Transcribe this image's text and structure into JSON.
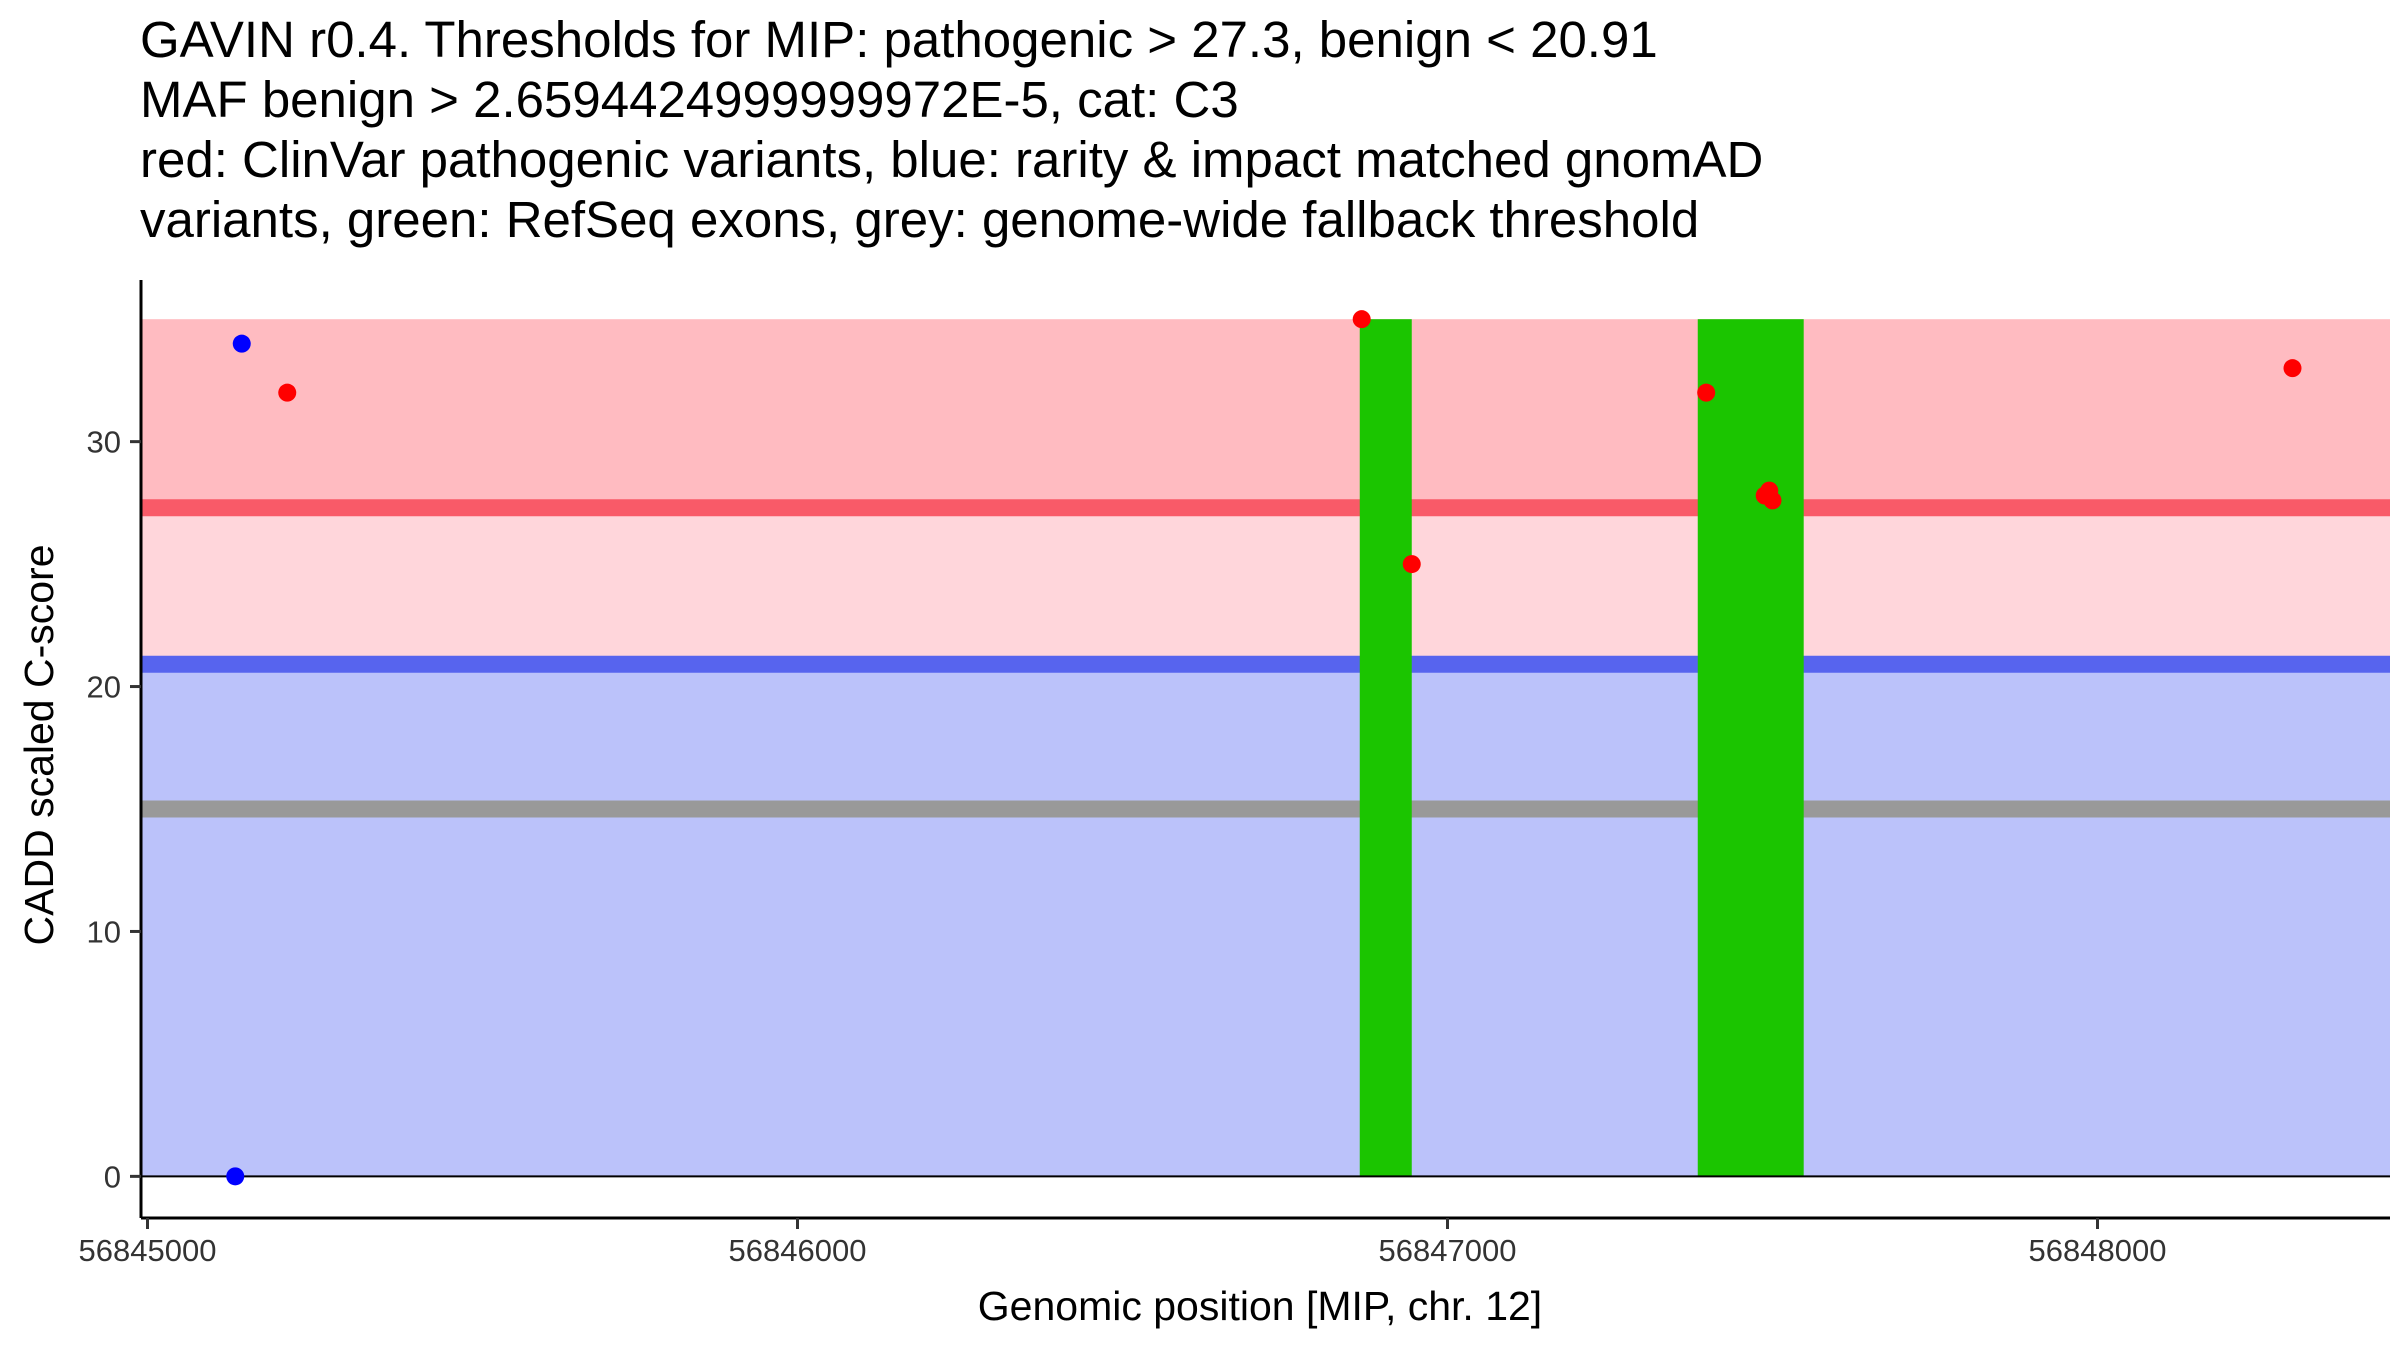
{
  "title_lines": [
    "GAVIN r0.4. Thresholds for MIP: pathogenic > 27.3, benign < 20.91",
    "MAF benign > 2.6594424999999972E-5, cat: C3",
    "red: ClinVar pathogenic variants, blue: rarity & impact matched gnomAD",
    "variants, green: RefSeq exons, grey: genome-wide fallback threshold"
  ],
  "chart_data": {
    "type": "scatter",
    "title": "GAVIN r0.4. Thresholds for MIP: pathogenic > 27.3, benign < 20.91 MAF benign > 2.6594424999999972E-5, cat: C3 red: ClinVar pathogenic variants, blue: rarity & impact matched gnomAD variants, green: RefSeq exons, grey: genome-wide fallback threshold",
    "xlabel": "Genomic position [MIP, chr. 12]",
    "ylabel": "CADD scaled C-score",
    "xlim": [
      56844990,
      56848450
    ],
    "ylim": [
      -1.7,
      36.6
    ],
    "xticks": [
      56845000,
      56846000,
      56847000,
      56848000
    ],
    "xtick_labels": [
      "56845000",
      "56846000",
      "56847000",
      "56848000"
    ],
    "yticks": [
      0,
      10,
      20,
      30
    ],
    "ytick_labels": [
      "0",
      "10",
      "20",
      "30"
    ],
    "regions": [
      {
        "name": "pathogenic-zone",
        "x_from": 56844990,
        "x_to": 56848450,
        "y_from": 27.3,
        "y_to": 35,
        "color": "#FFBBC1"
      },
      {
        "name": "grey-zone",
        "x_from": 56844990,
        "x_to": 56848450,
        "y_from": 20.91,
        "y_to": 27.3,
        "color": "#FFD6DB"
      },
      {
        "name": "benign-zone",
        "x_from": 56844990,
        "x_to": 56848450,
        "y_from": 0,
        "y_to": 20.91,
        "color": "#BBC2FA"
      }
    ],
    "exons": [
      {
        "start": 56846865,
        "end": 56846945,
        "y_from": 0,
        "y_to": 35,
        "color": "#1BC500"
      },
      {
        "start": 56847385,
        "end": 56847548,
        "y_from": 0,
        "y_to": 35,
        "color": "#1BC500"
      }
    ],
    "threshold_lines": [
      {
        "name": "benign-threshold",
        "y": 20.91,
        "color": "#5764EE"
      },
      {
        "name": "fallback-threshold",
        "y": 15.0,
        "color": "#999999"
      },
      {
        "name": "pathogenic-threshold",
        "y": 27.3,
        "color": "#F95A68"
      }
    ],
    "series": [
      {
        "name": "gnomAD",
        "color": "#0000FF",
        "points": [
          {
            "x": 56845145,
            "y": 34.0
          },
          {
            "x": 56845135,
            "y": 0.0
          }
        ]
      },
      {
        "name": "ClinVar pathogenic",
        "color": "#FF0000",
        "points": [
          {
            "x": 56845215,
            "y": 32.0
          },
          {
            "x": 56846868,
            "y": 35.0
          },
          {
            "x": 56846945,
            "y": 25.0
          },
          {
            "x": 56847398,
            "y": 32.0
          },
          {
            "x": 56847495,
            "y": 28.0
          },
          {
            "x": 56847488,
            "y": 27.8
          },
          {
            "x": 56847500,
            "y": 27.6
          },
          {
            "x": 56848300,
            "y": 33.0
          }
        ]
      }
    ]
  }
}
